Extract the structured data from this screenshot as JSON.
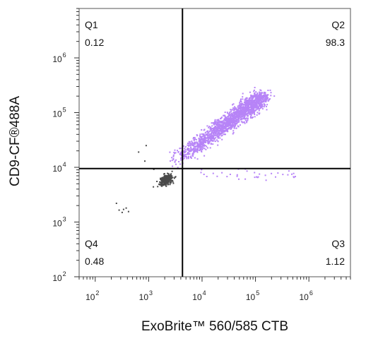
{
  "chart_data": {
    "type": "scatter",
    "title": "",
    "xlabel": "ExoBrite™ 560/585 CTB",
    "ylabel": "CD9-CF®488A",
    "xscale": "log",
    "yscale": "log",
    "xlim": [
      50,
      6000000
    ],
    "ylim": [
      100,
      8000000
    ],
    "x_ticks": [
      {
        "value": 100,
        "base": "10",
        "exp": "2"
      },
      {
        "value": 1000,
        "base": "10",
        "exp": "3"
      },
      {
        "value": 10000,
        "base": "10",
        "exp": "4"
      },
      {
        "value": 100000,
        "base": "10",
        "exp": "5"
      },
      {
        "value": 1000000,
        "base": "10",
        "exp": "6"
      }
    ],
    "y_ticks": [
      {
        "value": 100,
        "base": "10",
        "exp": "2"
      },
      {
        "value": 1000,
        "base": "10",
        "exp": "3"
      },
      {
        "value": 10000,
        "base": "10",
        "exp": "4"
      },
      {
        "value": 100000,
        "base": "10",
        "exp": "5"
      },
      {
        "value": 1000000,
        "base": "10",
        "exp": "6"
      }
    ],
    "gate": {
      "x": 4300,
      "y": 9500
    },
    "quadrants": [
      {
        "name": "Q1",
        "value": "0.12",
        "corner": "top-left"
      },
      {
        "name": "Q2",
        "value": "98.3",
        "corner": "top-right"
      },
      {
        "name": "Q3",
        "value": "1.12",
        "corner": "bottom-right"
      },
      {
        "name": "Q4",
        "value": "0.48",
        "corner": "bottom-left"
      }
    ],
    "populations": [
      {
        "label": "positive",
        "color": "#b784f7",
        "shape": "diagonal",
        "start": [
          3000,
          12000
        ],
        "end": [
          140000,
          200000
        ],
        "count": 1800,
        "spread": 0.09
      },
      {
        "label": "Q3",
        "color": "#b784f7",
        "shape": "band",
        "x_range": [
          9000,
          600000
        ],
        "y_center": 7500,
        "count": 35,
        "spread": 0.05
      },
      {
        "label": "unstained",
        "color": "#4a4a4a",
        "shape": "blob",
        "center": [
          2100,
          5800
        ],
        "count": 320,
        "spread_x": 0.06,
        "spread_y": 0.045
      },
      {
        "label": "debris",
        "color": "#4a4a4a",
        "shape": "scatter",
        "points": [
          [
            250,
            2200
          ],
          [
            320,
            1500
          ],
          [
            340,
            1700
          ],
          [
            420,
            1550
          ],
          [
            380,
            1800
          ],
          [
            650,
            19000
          ],
          [
            900,
            25000
          ],
          [
            850,
            13000
          ],
          [
            1250,
            9200
          ],
          [
            280,
            1650
          ]
        ]
      }
    ],
    "grid": false,
    "legend": "none"
  },
  "colors": {
    "gate_line": "#000000",
    "frame": "#555555",
    "positive": "#b784f7",
    "unstained": "#4a4a4a"
  }
}
